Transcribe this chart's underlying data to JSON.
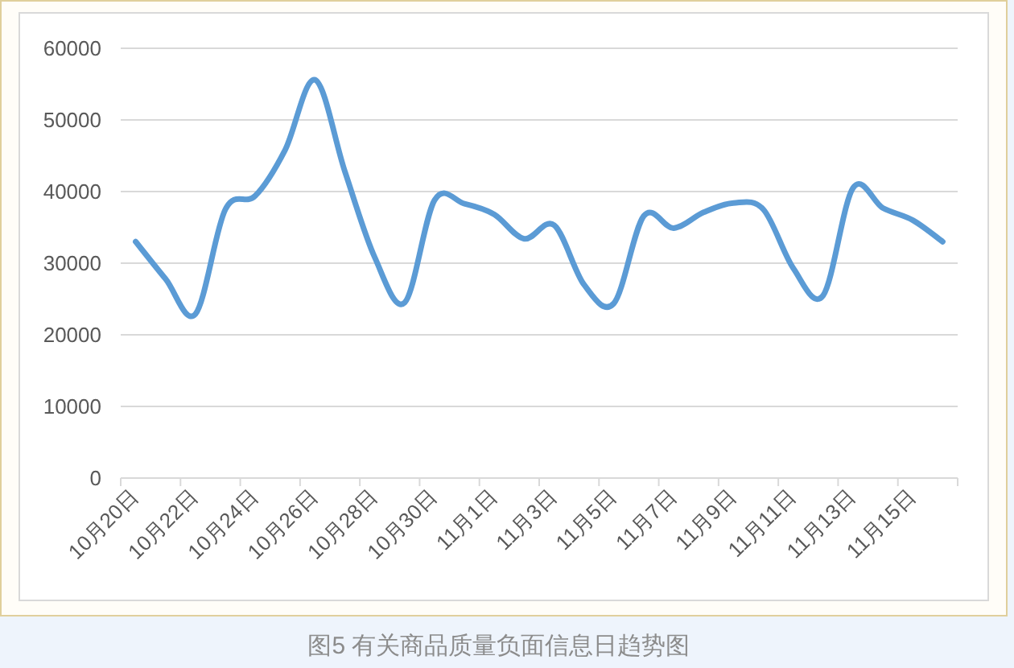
{
  "chart_data": {
    "type": "line",
    "title": "图5 有关商品质量负面信息日趋势图",
    "categories": [
      "10月20日",
      null,
      "10月22日",
      null,
      "10月24日",
      null,
      "10月26日",
      null,
      "10月28日",
      null,
      "10月30日",
      null,
      "11月1日",
      null,
      "11月3日",
      null,
      "11月5日",
      null,
      "11月7日",
      null,
      "11月9日",
      null,
      "11月11日",
      null,
      "11月13日",
      null,
      "11月15日",
      null
    ],
    "values": [
      33000,
      27800,
      22900,
      37500,
      39400,
      45800,
      55600,
      42800,
      30800,
      24500,
      38800,
      38300,
      36800,
      33400,
      35300,
      27000,
      24400,
      36600,
      34900,
      37100,
      38400,
      37500,
      29300,
      25500,
      40500,
      37700,
      36000,
      33000
    ],
    "color": "#5b9bd5",
    "ylim": [
      0,
      60000
    ],
    "yticks": [
      0,
      10000,
      20000,
      30000,
      40000,
      50000,
      60000
    ],
    "grid": "y"
  }
}
